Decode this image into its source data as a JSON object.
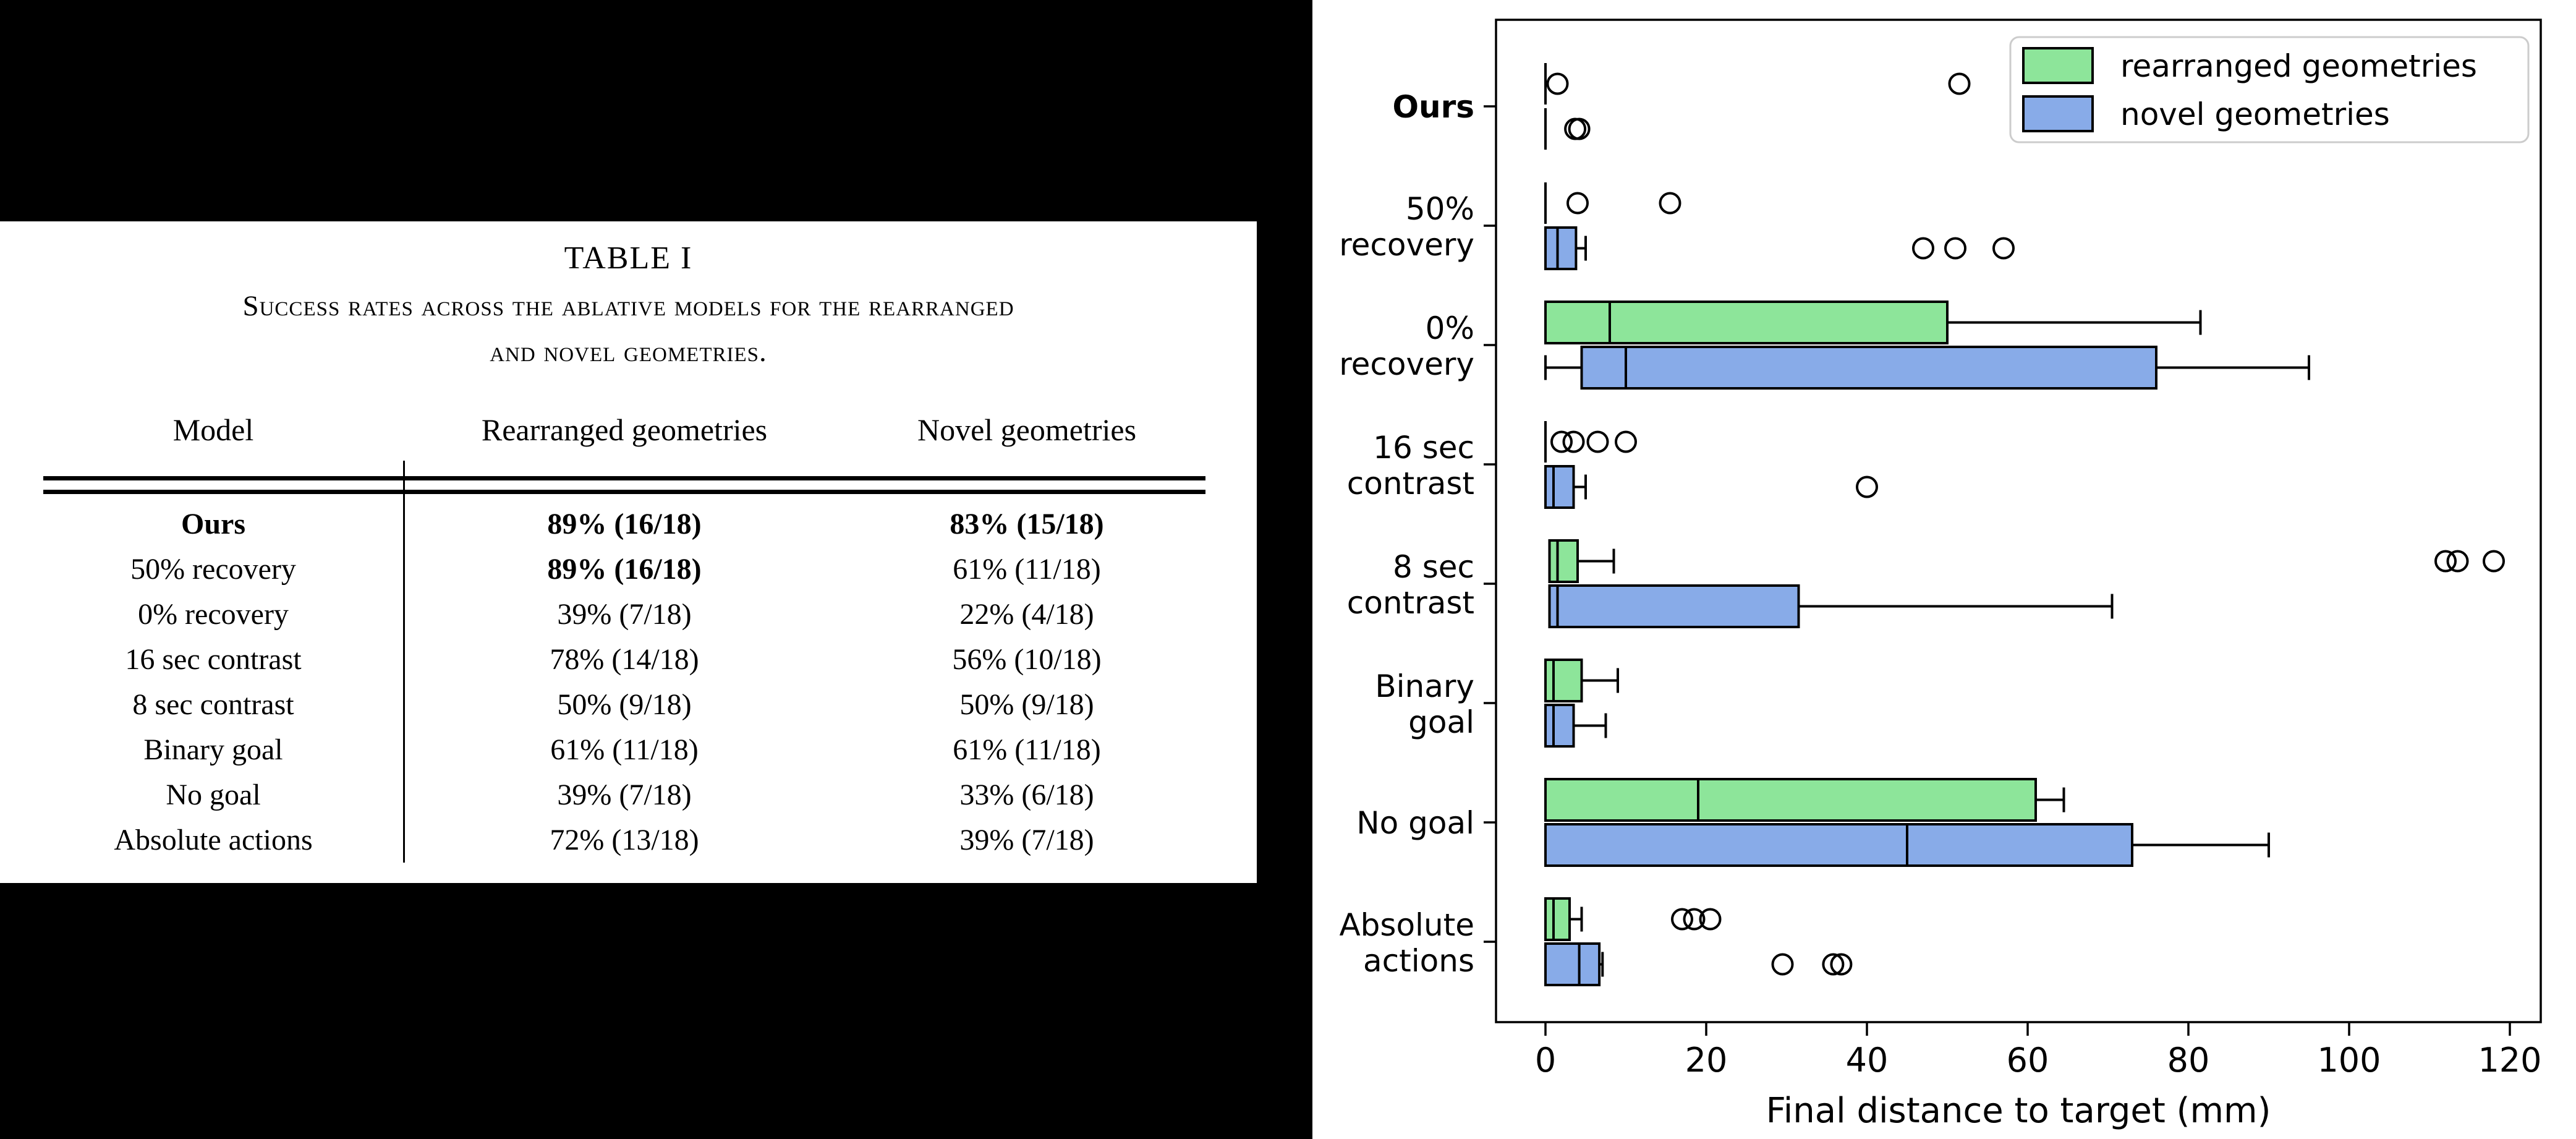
{
  "table": {
    "title": "TABLE I",
    "caption_line1": "Success rates across the ablative models for the rearranged",
    "caption_line2": "and novel geometries.",
    "columns": [
      "Model",
      "Rearranged geometries",
      "Novel geometries"
    ],
    "rows": [
      {
        "model": "Ours",
        "rearranged": "89% (16/18)",
        "novel": "83% (15/18)",
        "bold": [
          "model",
          "rearranged",
          "novel"
        ]
      },
      {
        "model": "50% recovery",
        "rearranged": "89% (16/18)",
        "novel": "61% (11/18)",
        "bold": [
          "rearranged"
        ]
      },
      {
        "model": "0% recovery",
        "rearranged": "39% (7/18)",
        "novel": "22% (4/18)",
        "bold": []
      },
      {
        "model": "16 sec contrast",
        "rearranged": "78% (14/18)",
        "novel": "56% (10/18)",
        "bold": []
      },
      {
        "model": "8 sec contrast",
        "rearranged": "50% (9/18)",
        "novel": "50% (9/18)",
        "bold": []
      },
      {
        "model": "Binary goal",
        "rearranged": "61% (11/18)",
        "novel": "61% (11/18)",
        "bold": []
      },
      {
        "model": "No goal",
        "rearranged": "39% (7/18)",
        "novel": "33% (6/18)",
        "bold": []
      },
      {
        "model": "Absolute actions",
        "rearranged": "72% (13/18)",
        "novel": "39% (7/18)",
        "bold": []
      }
    ]
  },
  "chart_data": {
    "type": "boxplot-horizontal",
    "xlabel": "Final distance to target (mm)",
    "x_ticks": [
      0,
      20,
      40,
      60,
      80,
      100,
      120
    ],
    "xlim": [
      -6,
      124
    ],
    "grid": false,
    "legend_position": "upper right",
    "categories": [
      {
        "lines": [
          "Ours"
        ],
        "bold": true
      },
      {
        "lines": [
          "50%",
          "recovery"
        ],
        "bold": false
      },
      {
        "lines": [
          "0%",
          "recovery"
        ],
        "bold": false
      },
      {
        "lines": [
          "16 sec",
          "contrast"
        ],
        "bold": false
      },
      {
        "lines": [
          "8 sec",
          "contrast"
        ],
        "bold": false
      },
      {
        "lines": [
          "Binary",
          "goal"
        ],
        "bold": false
      },
      {
        "lines": [
          "No goal"
        ],
        "bold": false
      },
      {
        "lines": [
          "Absolute",
          "actions"
        ],
        "bold": false
      }
    ],
    "series": [
      {
        "name": "rearranged geometries",
        "color": "#8DE59A",
        "boxes": [
          {
            "lo": 0,
            "q1": 0,
            "med": 0,
            "q3": 0,
            "hi": 0,
            "fliers": [
              1.5,
              51.5
            ]
          },
          {
            "lo": 0,
            "q1": 0,
            "med": 0,
            "q3": 0,
            "hi": 0,
            "fliers": [
              4,
              15.5
            ]
          },
          {
            "lo": 0,
            "q1": 0,
            "med": 8,
            "q3": 50,
            "hi": 81.5,
            "fliers": []
          },
          {
            "lo": 0,
            "q1": 0,
            "med": 0,
            "q3": 0,
            "hi": 0,
            "fliers": [
              2,
              3.5,
              6.5,
              10
            ]
          },
          {
            "lo": 0.5,
            "q1": 0.5,
            "med": 1.5,
            "q3": 4,
            "hi": 8.5,
            "fliers": [
              112,
              113.5,
              118
            ]
          },
          {
            "lo": 0,
            "q1": 0,
            "med": 1,
            "q3": 4.5,
            "hi": 9,
            "fliers": []
          },
          {
            "lo": 0,
            "q1": 0,
            "med": 19,
            "q3": 61,
            "hi": 64.5,
            "fliers": []
          },
          {
            "lo": 0,
            "q1": 0,
            "med": 1,
            "q3": 3,
            "hi": 4.5,
            "fliers": [
              17,
              18.5,
              20.5
            ]
          }
        ]
      },
      {
        "name": "novel geometries",
        "color": "#88ABE8",
        "boxes": [
          {
            "lo": 0,
            "q1": 0,
            "med": 0,
            "q3": 0,
            "hi": 0,
            "fliers": [
              3.7,
              4.2
            ]
          },
          {
            "lo": 0,
            "q1": 0,
            "med": 1.5,
            "q3": 3.8,
            "hi": 5,
            "fliers": [
              47,
              51,
              57
            ]
          },
          {
            "lo": 0,
            "q1": 4.5,
            "med": 10,
            "q3": 76,
            "hi": 95,
            "fliers": []
          },
          {
            "lo": 0,
            "q1": 0,
            "med": 1,
            "q3": 3.5,
            "hi": 5,
            "fliers": [
              40
            ]
          },
          {
            "lo": 0.5,
            "q1": 0.5,
            "med": 1.5,
            "q3": 31.5,
            "hi": 70.5,
            "fliers": []
          },
          {
            "lo": 0,
            "q1": 0,
            "med": 1,
            "q3": 3.5,
            "hi": 7.5,
            "fliers": []
          },
          {
            "lo": 0,
            "q1": 0,
            "med": 45,
            "q3": 73,
            "hi": 90,
            "fliers": []
          },
          {
            "lo": 0,
            "q1": 0,
            "med": 4.2,
            "q3": 6.7,
            "hi": 7.1,
            "fliers": [
              29.5,
              35.8,
              36.8
            ]
          }
        ]
      }
    ]
  }
}
